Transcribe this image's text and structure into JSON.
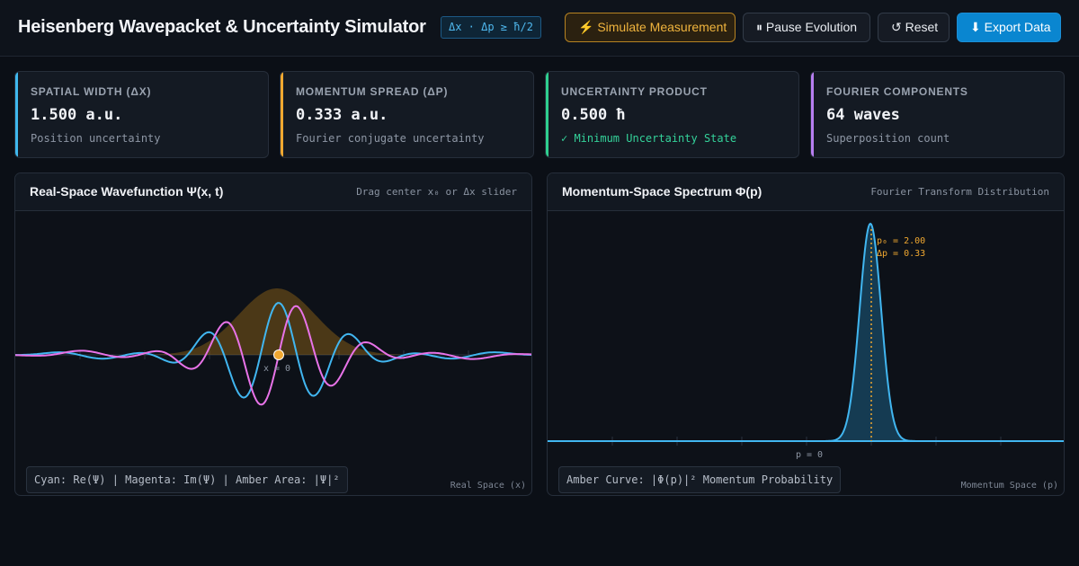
{
  "header": {
    "title": "Heisenberg Wavepacket & Uncertainty Simulator",
    "formula": "Δx · Δp ≥ ħ/2",
    "buttons": {
      "simulate": "⚡ Simulate Measurement",
      "pause": "⏸ Pause Evolution",
      "reset": "↺ Reset",
      "export": "⬇ Export Data"
    }
  },
  "cards": [
    {
      "label": "Spatial Width (Δx)",
      "value": "1.500 a.u.",
      "sub": "Position uncertainty",
      "accent": "#3fb8ee"
    },
    {
      "label": "Momentum Spread (Δp)",
      "value": "0.333 a.u.",
      "sub": "Fourier conjugate uncertainty",
      "accent": "#f0a830"
    },
    {
      "label": "Uncertainty Product",
      "value": "0.500 ħ",
      "sub": "✓ Minimum Uncertainty State",
      "accent": "#2fcf8f"
    },
    {
      "label": "Fourier Components",
      "value": "64 waves",
      "sub": "Superposition count",
      "accent": "#b77ef0"
    }
  ],
  "real_panel": {
    "title": "Real-Space Wavefunction Ψ(x, t)",
    "hint": "Drag center x₀ or Δx slider",
    "marker_label": "x = 0",
    "legend": "Cyan: Re(Ψ) | Magenta: Im(Ψ) | Amber Area: |Ψ|²",
    "axis_name": "Real Space (x)"
  },
  "momentum_panel": {
    "title": "Momentum-Space Spectrum Φ(p)",
    "hint": "Fourier Transform Distribution",
    "p0_label": "p₀ = 2.00",
    "dp_label": "Δp = 0.33",
    "axis_label": "p = 0",
    "legend": "Amber Curve: |Φ(p)|² Momentum Probability",
    "axis_name": "Momentum Space (p)"
  },
  "physics": {
    "x0": 0,
    "sigma_x": 1.5,
    "p0": 2.0,
    "sigma_p": 0.333
  },
  "colors": {
    "re": "#41b6f0",
    "im": "#e873e8",
    "prob": "#b07a18",
    "momentum": "#41b6f0",
    "marker": "#f0a830"
  }
}
